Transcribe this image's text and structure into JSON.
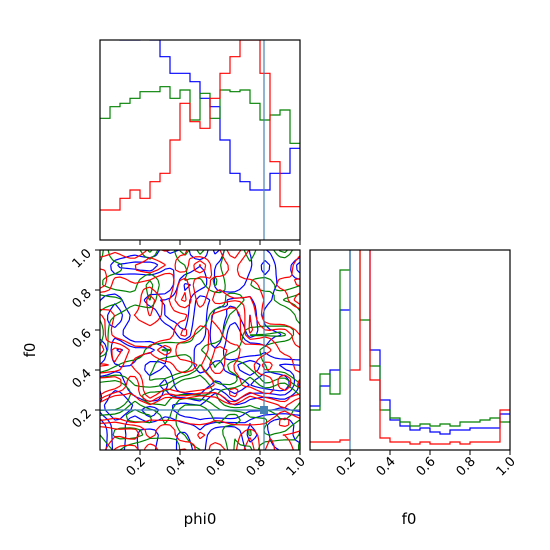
{
  "chart_data": {
    "type": "corner",
    "parameters": [
      "phi0",
      "f0"
    ],
    "truth": {
      "phi0": 0.82,
      "f0": 0.2
    },
    "colors": {
      "blue": "#0000ff",
      "green": "#008000",
      "red": "#ff0000",
      "truth": "#4682b4"
    },
    "panels": {
      "phi0_hist": {
        "xlim": [
          0,
          1
        ],
        "bin_edges": [
          0.0,
          0.05,
          0.1,
          0.15,
          0.2,
          0.25,
          0.3,
          0.35,
          0.4,
          0.45,
          0.5,
          0.55,
          0.6,
          0.65,
          0.7,
          0.75,
          0.8,
          0.85,
          0.9,
          0.95,
          1.0
        ],
        "series": [
          {
            "color": "blue",
            "values": [
              1.4,
              1.4,
              1.2,
              1.2,
              1.3,
              1.2,
              1.1,
              1.0,
              1.0,
              0.95,
              0.85,
              0.8,
              0.6,
              0.4,
              0.35,
              0.3,
              0.3,
              0.4,
              0.4,
              0.55
            ]
          },
          {
            "color": "green",
            "values": [
              0.73,
              0.8,
              0.82,
              0.85,
              0.89,
              0.89,
              0.92,
              0.85,
              0.9,
              0.72,
              0.88,
              0.73,
              0.9,
              0.89,
              0.9,
              0.82,
              0.72,
              0.75,
              0.78,
              0.58
            ]
          },
          {
            "color": "red",
            "values": [
              0.18,
              0.18,
              0.25,
              0.3,
              0.25,
              0.35,
              0.4,
              0.6,
              0.82,
              0.71,
              0.67,
              0.85,
              1.0,
              1.1,
              1.2,
              1.2,
              1.0,
              0.47,
              0.2,
              0.2
            ]
          }
        ]
      },
      "f0_hist": {
        "xlim": [
          0,
          1
        ],
        "bin_edges": [
          0.0,
          0.05,
          0.1,
          0.15,
          0.2,
          0.25,
          0.3,
          0.35,
          0.4,
          0.45,
          0.5,
          0.55,
          0.6,
          0.65,
          0.7,
          0.75,
          0.8,
          0.85,
          0.9,
          0.95,
          1.0
        ],
        "series": [
          {
            "color": "blue",
            "values": [
              0.22,
              0.32,
              0.4,
              0.7,
              1.2,
              1.2,
              0.5,
              0.25,
              0.15,
              0.12,
              0.1,
              0.11,
              0.09,
              0.08,
              0.1,
              0.1,
              0.11,
              0.11,
              0.11,
              0.18
            ]
          },
          {
            "color": "green",
            "values": [
              0.2,
              0.38,
              0.28,
              0.9,
              1.2,
              0.65,
              0.42,
              0.2,
              0.16,
              0.14,
              0.12,
              0.13,
              0.12,
              0.13,
              0.12,
              0.14,
              0.14,
              0.15,
              0.16,
              0.14
            ]
          },
          {
            "color": "red",
            "values": [
              0.04,
              0.04,
              0.04,
              0.05,
              0.4,
              1.2,
              0.35,
              0.06,
              0.04,
              0.04,
              0.03,
              0.04,
              0.03,
              0.03,
              0.04,
              0.03,
              0.04,
              0.04,
              0.04,
              0.2
            ]
          }
        ]
      },
      "joint": {
        "xlabel": "phi0",
        "ylabel": "f0",
        "xlim": [
          0,
          1
        ],
        "ylim": [
          0,
          1
        ],
        "contour_levels": [
          0.4,
          0.6,
          0.8
        ],
        "contour_series": [
          "blue",
          "green",
          "red"
        ]
      }
    },
    "x_ticks": [
      0.2,
      0.4,
      0.6,
      0.8,
      1.0
    ],
    "x_tick_labels": [
      "0.2",
      "0.4",
      "0.6",
      "0.8",
      "1.0"
    ],
    "y_ticks": [
      0.2,
      0.4,
      0.6,
      0.8,
      1.0
    ],
    "y_tick_labels": [
      "0.2",
      "0.4",
      "0.6",
      "0.8",
      "1.0"
    ]
  }
}
